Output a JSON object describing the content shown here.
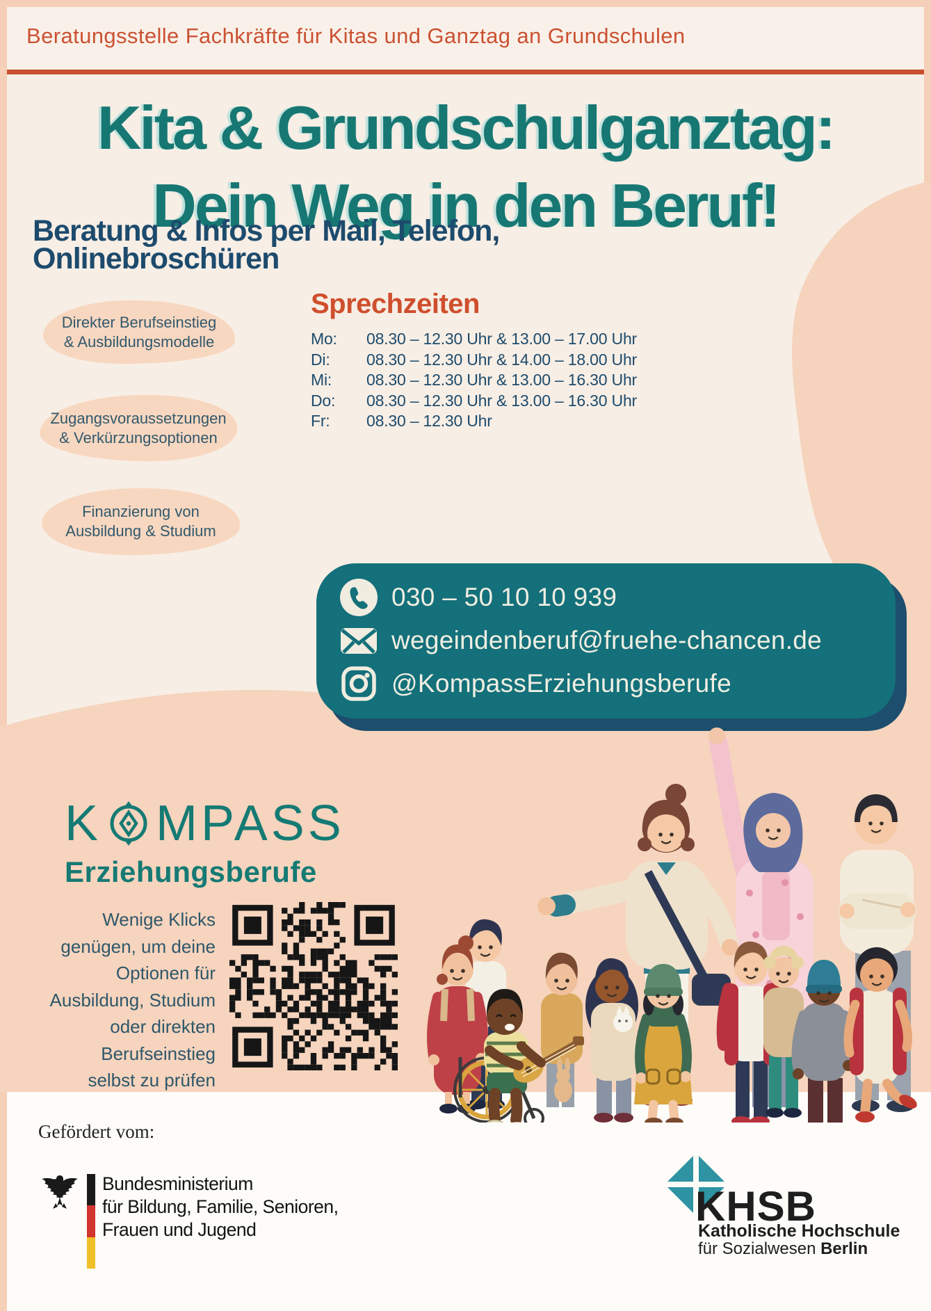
{
  "header": {
    "line": "Beratungsstelle Fachkräfte für Kitas und Ganztag an Grundschulen"
  },
  "title": {
    "line1": "Kita & Grundschulganztag:",
    "line2": "Dein Weg in den Beruf!"
  },
  "subtitle": {
    "line1": "Beratung & Infos per Mail, Telefon,",
    "line2": "Onlinebroschüren"
  },
  "topics": [
    {
      "line1": "Direkter Berufseinstieg",
      "line2": "& Ausbildungsmodelle"
    },
    {
      "line1": "Zugangsvoraussetzungen",
      "line2": "& Verkürzungsoptionen"
    },
    {
      "line1": "Finanzierung von",
      "line2": "Ausbildung & Studium"
    }
  ],
  "hours": {
    "heading": "Sprechzeiten",
    "rows": [
      {
        "day": "Mo:",
        "time": "08.30 – 12.30 Uhr & 13.00 – 17.00 Uhr"
      },
      {
        "day": "Di:",
        "time": "08.30 – 12.30 Uhr & 14.00 – 18.00 Uhr"
      },
      {
        "day": "Mi:",
        "time": "08.30 – 12.30 Uhr & 13.00 – 16.30 Uhr"
      },
      {
        "day": "Do:",
        "time": "08.30 – 12.30 Uhr & 13.00 – 16.30 Uhr"
      },
      {
        "day": "Fr:",
        "time": "08.30 – 12.30 Uhr"
      }
    ]
  },
  "contact": {
    "phone": "030 – 50 10 10 939",
    "email": "wegeindenberuf@fruehe-chancen.de",
    "instagram": "@KompassErziehungsberufe",
    "icons": [
      "phone-icon",
      "mail-icon",
      "instagram-icon"
    ]
  },
  "brand": {
    "logo_k": "K",
    "logo_rest": "MPASS",
    "logo_icon": "compass-icon",
    "logo_sub": "Erziehungsberufe"
  },
  "qr_note": {
    "l1": "Wenige Klicks",
    "l2": "genügen, um  deine",
    "l3": "Optionen für",
    "l4": "Ausbildung, Studium",
    "l5": "oder direkten",
    "l6": "Berufseinstieg",
    "l7": "selbst zu prüfen"
  },
  "footer": {
    "funded_by": "Gefördert vom:",
    "ministry_line1": "Bundesministerium",
    "ministry_line2": "für Bildung, Familie, Senioren,",
    "ministry_line3": "Frauen und Jugend",
    "khsb_acronym": "KHSB",
    "khsb_line1": "Katholische Hochschule",
    "khsb_line2_normal": "für Sozialwesen ",
    "khsb_line2_bold": "Berlin"
  },
  "colors": {
    "accent_orange": "#c84f2d",
    "title_teal": "#177773",
    "navy": "#1d4b6d",
    "contact_box_teal": "#14707a",
    "contact_box_shadow": "#1d4e6d",
    "peach_blob": "#f6d3bc",
    "pill_peach": "#f8d7c0",
    "kompass_teal": "#157a74",
    "khsb_teal": "#2e93a2",
    "flag_black": "#1a1a1a",
    "flag_red": "#d23430",
    "flag_gold": "#f0c028"
  }
}
